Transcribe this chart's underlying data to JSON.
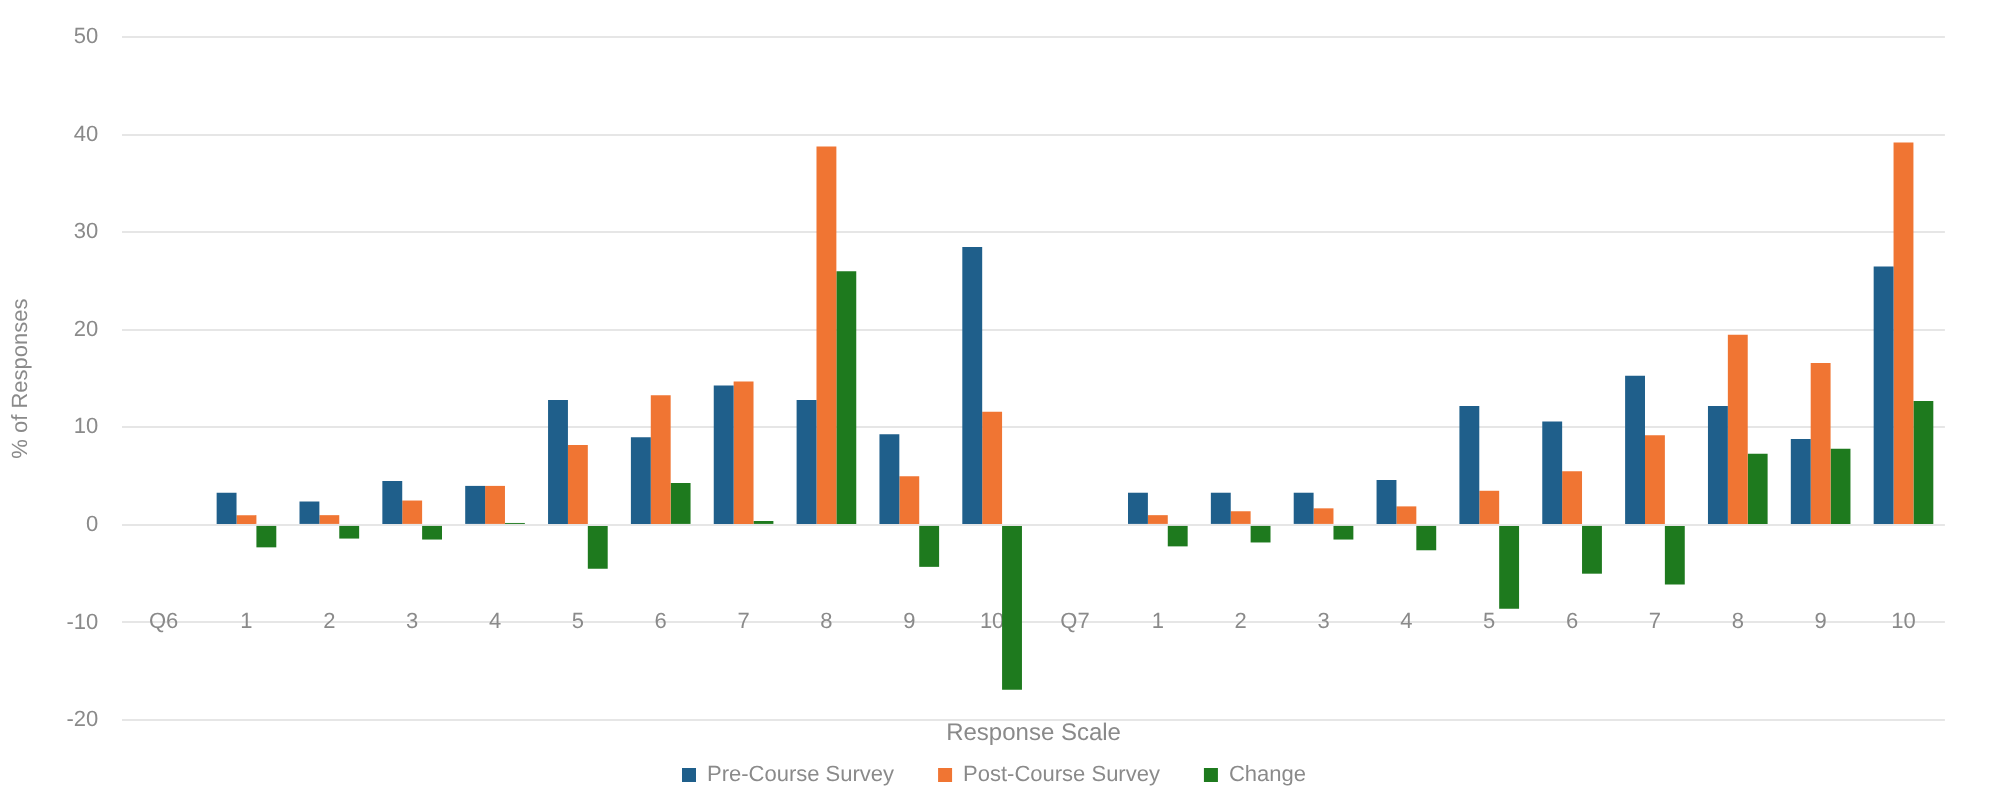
{
  "chart_data": {
    "type": "bar",
    "xlabel": "Response Scale",
    "ylabel": "% of Responses",
    "categories": [
      "Q6",
      "1",
      "2",
      "3",
      "4",
      "5",
      "6",
      "7",
      "8",
      "9",
      "10",
      "Q7",
      "1",
      "2",
      "3",
      "4",
      "5",
      "6",
      "7",
      "8",
      "9",
      "10"
    ],
    "series": [
      {
        "name": "Pre-Course Survey",
        "color": "#1f5f8b",
        "values": [
          null,
          3.3,
          2.4,
          4.5,
          4,
          12.8,
          9,
          14.3,
          12.8,
          9.3,
          28.5,
          null,
          3.3,
          3.3,
          3.3,
          4.6,
          12.2,
          10.6,
          15.3,
          12.2,
          8.8,
          26.5
        ]
      },
      {
        "name": "Post-Course Survey",
        "color": "#f07533",
        "values": [
          null,
          1,
          1,
          2.5,
          4,
          8.2,
          13.3,
          14.7,
          38.8,
          5,
          11.6,
          null,
          1,
          1.4,
          1.7,
          1.9,
          3.5,
          5.5,
          9.2,
          19.5,
          16.6,
          39.2
        ]
      },
      {
        "name": "Change",
        "color": "#1e7a1e",
        "values": [
          null,
          -2.3,
          -1.4,
          -1.5,
          0.2,
          -4.5,
          4.3,
          0.4,
          26,
          -4.3,
          -16.9,
          null,
          -2.2,
          -1.8,
          -1.5,
          -2.6,
          -8.6,
          -5,
          -6.1,
          7.3,
          7.8,
          12.7
        ]
      }
    ],
    "ylim": [
      -20,
      50
    ],
    "yticks": [
      -20,
      -10,
      0,
      10,
      20,
      30,
      40,
      50
    ],
    "grid": "y",
    "legend": "bottom"
  }
}
